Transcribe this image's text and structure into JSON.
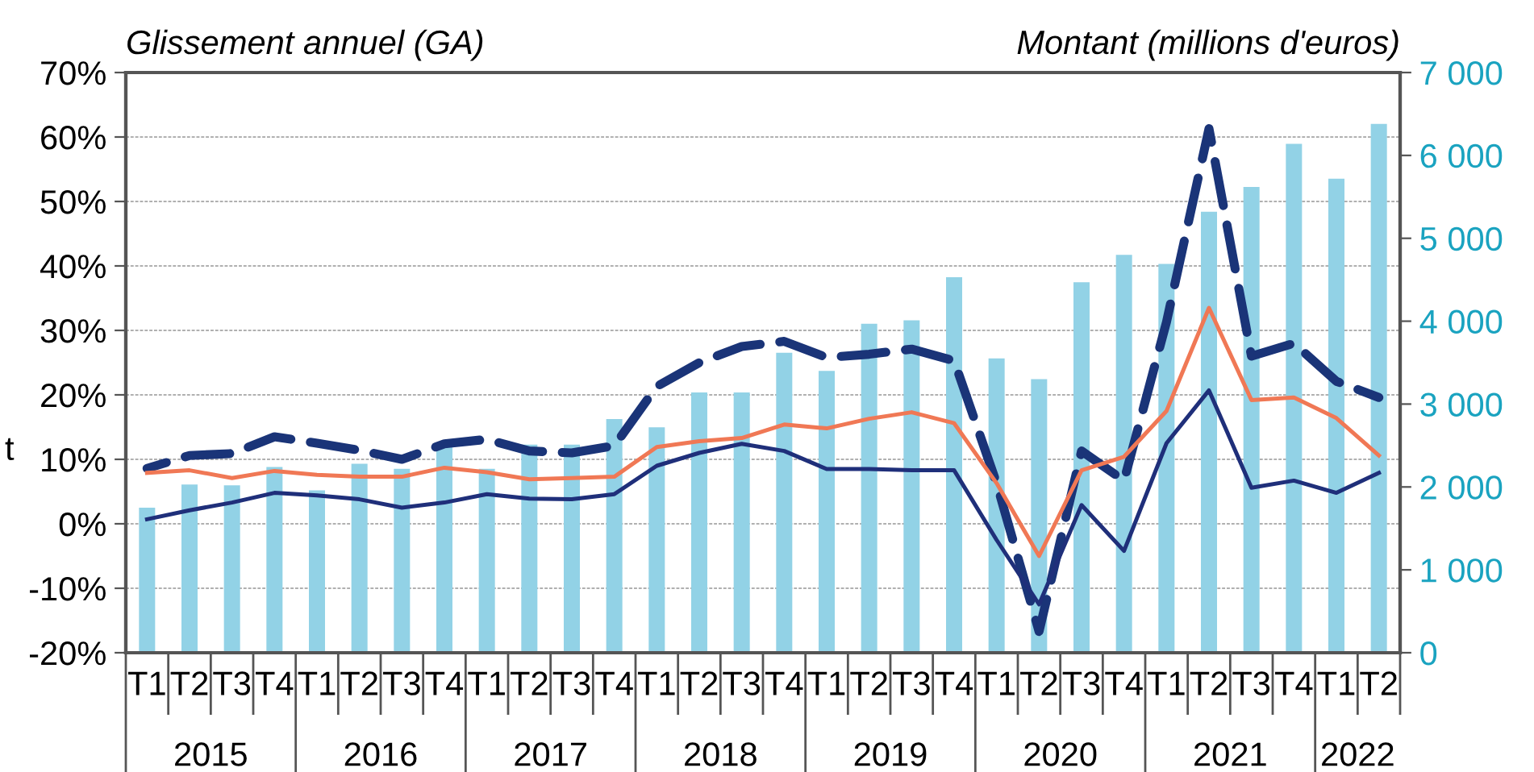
{
  "chart_data": {
    "type": "bar",
    "ylabel": "Glissement annuel (GA)",
    "y2label": "Montant (millions d'euros)",
    "categories": [
      "T1",
      "T2",
      "T3",
      "T4",
      "T1",
      "T2",
      "T3",
      "T4",
      "T1",
      "T2",
      "T3",
      "T4",
      "T1",
      "T2",
      "T3",
      "T4",
      "T1",
      "T2",
      "T3",
      "T4",
      "T1",
      "T2",
      "T3",
      "T4",
      "T1",
      "T2",
      "T3",
      "T4",
      "T1",
      "T2"
    ],
    "series": [
      {
        "axis": "y2",
        "color": "#92d2e6",
        "values": [
          1750,
          2030,
          2020,
          2240,
          1960,
          2280,
          2220,
          2480,
          2220,
          2510,
          2510,
          2820,
          2720,
          3140,
          3140,
          3620,
          3400,
          3970,
          4010,
          4530,
          3550,
          3300,
          4470,
          4800,
          4690,
          5320,
          5620,
          6140,
          5720,
          6380
        ]
      },
      {
        "type": "line",
        "axis": "y",
        "color": "#1a3478",
        "line_style": "dashed",
        "values": [
          8.6,
          10.6,
          10.9,
          13.5,
          12.5,
          11.4,
          10,
          12.4,
          13.1,
          11.3,
          11,
          12.1,
          21.3,
          25,
          27.5,
          28.3,
          25.8,
          26.3,
          27.1,
          25.3,
          6.3,
          -16.7,
          11.3,
          6.7,
          31.3,
          61.3,
          26,
          28,
          22.1,
          19.6
        ]
      },
      {
        "type": "line",
        "axis": "y",
        "color": "#f07855",
        "line_style": "solid",
        "values": [
          7.9,
          8.3,
          7.1,
          8.2,
          7.6,
          7.3,
          7.3,
          8.7,
          8,
          6.9,
          7.1,
          7.3,
          11.9,
          12.8,
          13.3,
          15.4,
          14.8,
          16.3,
          17.3,
          15.6,
          6.3,
          -5,
          8.3,
          10.4,
          17.5,
          33.5,
          19.2,
          19.6,
          16.4,
          10.6
        ]
      },
      {
        "type": "line",
        "axis": "y",
        "color": "#1f2f7a",
        "line_style": "solid",
        "values": [
          0.7,
          2.1,
          3.3,
          4.8,
          4.4,
          3.8,
          2.5,
          3.3,
          4.6,
          3.9,
          3.8,
          4.6,
          9,
          11,
          12.4,
          11.3,
          8.5,
          8.5,
          8.3,
          8.3,
          -2.5,
          -12.5,
          2.9,
          -4.2,
          12.5,
          20.7,
          5.6,
          6.7,
          4.8,
          7.9
        ]
      }
    ],
    "ylim": [
      -20,
      70
    ],
    "yticks": [
      {
        "value": -20,
        "label": "-20%"
      },
      {
        "value": -10,
        "label": "-10%"
      },
      {
        "value": 0,
        "label": "0%"
      },
      {
        "value": 10,
        "label": "10%"
      },
      {
        "value": 20,
        "label": "20%"
      },
      {
        "value": 30,
        "label": "30%"
      },
      {
        "value": 40,
        "label": "40%"
      },
      {
        "value": 50,
        "label": "50%"
      },
      {
        "value": 60,
        "label": "60%"
      },
      {
        "value": 70,
        "label": "70%"
      }
    ],
    "y2lim": [
      0,
      7000
    ],
    "y2ticks": [
      0,
      {
        "value": 1000,
        "label": "1 000"
      },
      {
        "value": 2000,
        "label": "2 000"
      },
      {
        "value": 3000,
        "label": "3 000"
      },
      {
        "value": 4000,
        "label": "4 000"
      },
      {
        "value": 5000,
        "label": "5 000"
      },
      {
        "value": 6000,
        "label": "6 000"
      },
      {
        "value": 7000,
        "label": "7 000"
      }
    ],
    "grid": "y",
    "annotations": [
      "2015",
      "2016",
      "2017",
      "2018",
      "2019",
      "2020",
      "2021",
      "2022",
      "t"
    ]
  }
}
